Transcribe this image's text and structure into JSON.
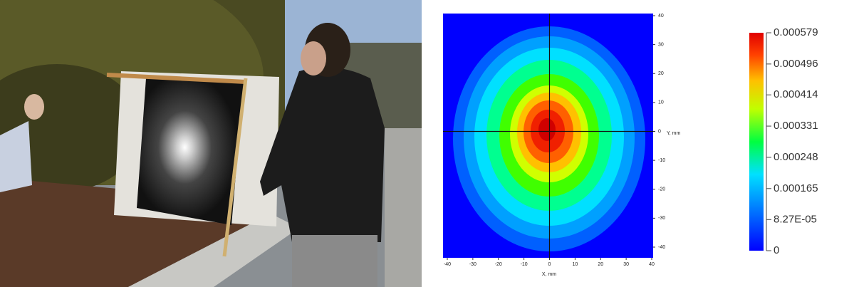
{
  "heatmap": {
    "x_label": "X, mm",
    "y_label": "Y, mm",
    "xlim": [
      -40,
      40
    ],
    "ylim": [
      -40,
      40
    ],
    "xticks": [
      -40,
      -30,
      -20,
      -10,
      0,
      10,
      20,
      30,
      40
    ],
    "yticks": [
      -40,
      -30,
      -20,
      -10,
      0,
      10,
      20,
      30,
      40
    ]
  },
  "colorbar": {
    "lim": [
      0,
      0.000579
    ],
    "ticks": [
      0.000579,
      0.000496,
      0.000414,
      0.000331,
      0.000248,
      0.000165,
      {
        "value": 8.27e-05,
        "label": "8.27E-05"
      },
      0
    ]
  }
}
